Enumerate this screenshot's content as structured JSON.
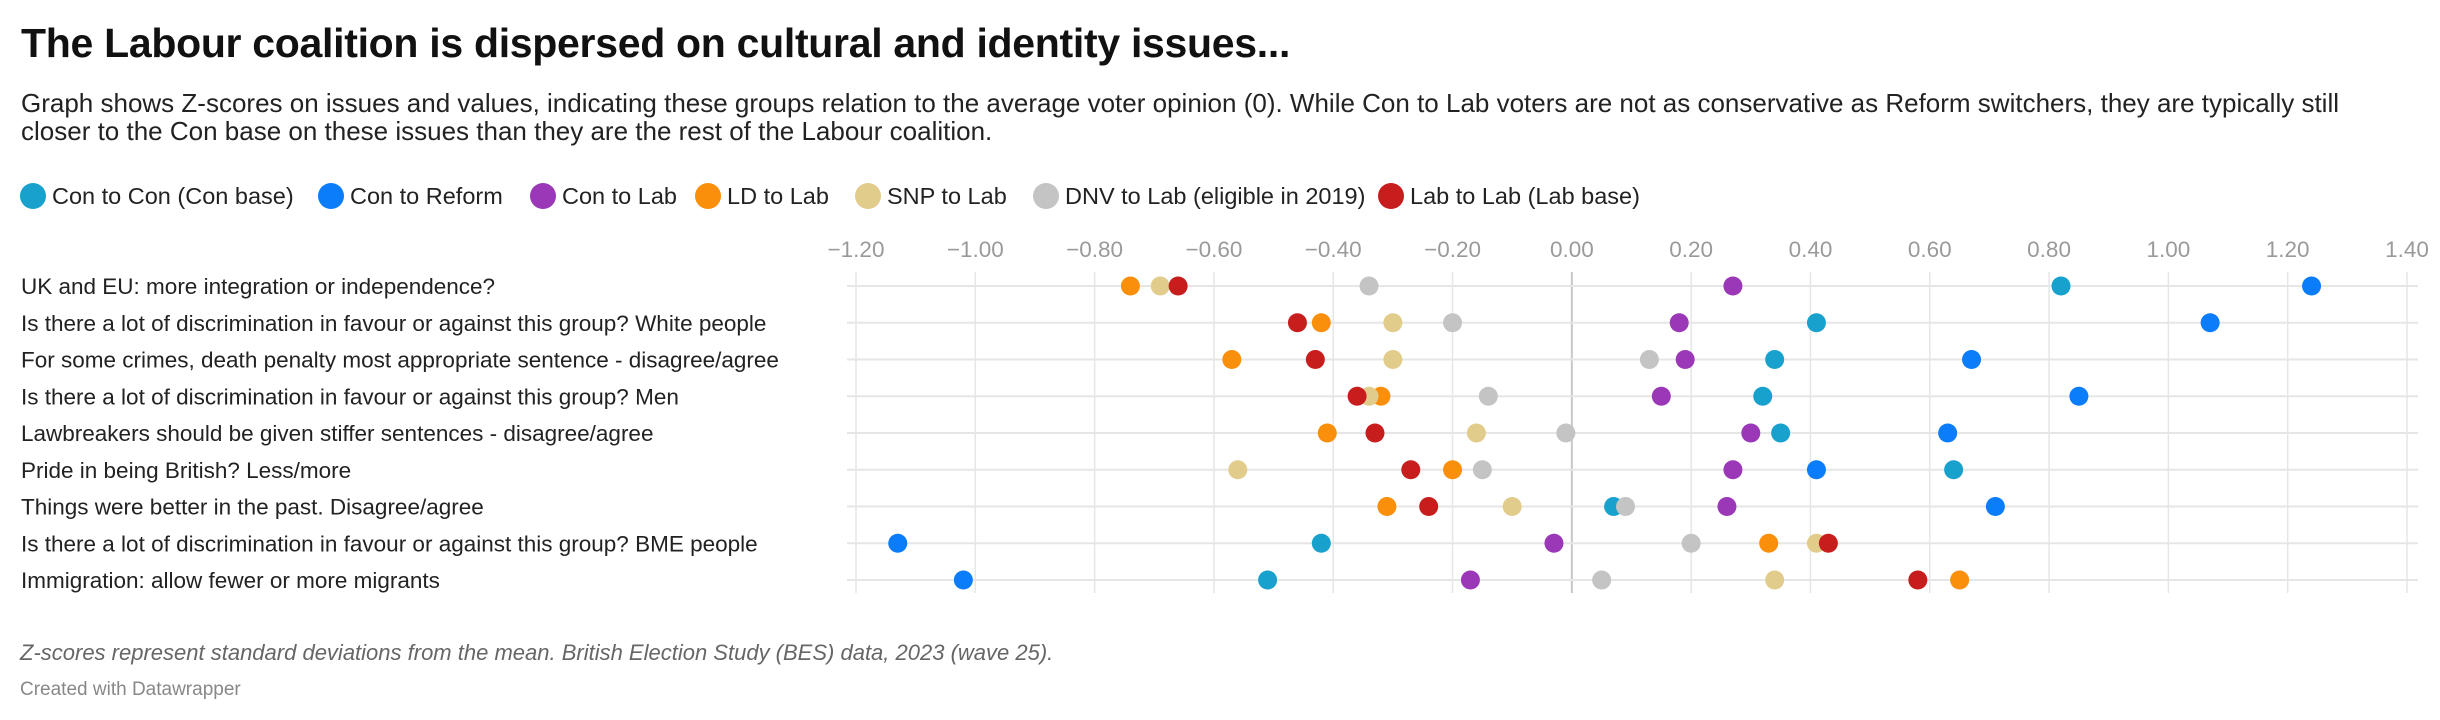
{
  "header": {
    "title": "The Labour coalition is dispersed on cultural and identity issues...",
    "subtitle": "Graph shows Z-scores on issues and values, indicating these groups relation to the average voter opinion (0). While Con to Lab voters are not as conservative as Reform switchers, they are typically still closer to the Con base on these issues than they are the rest of the Labour coalition."
  },
  "footer": {
    "note": "Z-scores represent standard deviations from the mean. British Election Study (BES) data, 2023 (wave 25).",
    "credit": "Created with Datawrapper"
  },
  "chart_data": {
    "type": "scatter",
    "subtype": "dot-plot",
    "title": "The Labour coalition is dispersed on cultural and identity issues...",
    "xlabel": "",
    "ylabel": "",
    "xlim": [
      -1.2,
      1.4
    ],
    "x_ticks": [
      -1.2,
      -1.0,
      -0.8,
      -0.6,
      -0.4,
      -0.2,
      0.0,
      0.2,
      0.4,
      0.6,
      0.8,
      1.0,
      1.2,
      1.4
    ],
    "x_tick_labels": [
      "−1.20",
      "−1.00",
      "−0.80",
      "−0.60",
      "−0.40",
      "−0.20",
      "0.00",
      "0.20",
      "0.40",
      "0.60",
      "0.80",
      "1.00",
      "1.20",
      "1.40"
    ],
    "grid": true,
    "legend_position": "top-left",
    "categories": [
      "UK and EU: more integration or independence?",
      "Is there a lot of discrimination in favour or against this group? White people",
      "For some crimes, death penalty most appropriate sentence - disagree/agree",
      "Is there a lot of discrimination in favour or against this group? Men",
      "Lawbreakers should be given stiffer sentences - disagree/agree",
      "Pride in being British? Less/more",
      "Things were better in the past. Disagree/agree",
      "Is there a lot of discrimination in favour or against this group? BME people",
      "Immigration: allow fewer or more migrants"
    ],
    "series": [
      {
        "name": "Con to Con (Con base)",
        "color": "#18a1cd",
        "values": [
          0.82,
          0.41,
          0.34,
          0.32,
          0.35,
          0.64,
          0.07,
          -0.42,
          -0.51
        ]
      },
      {
        "name": "Con to Reform",
        "color": "#0b7cfa",
        "values": [
          1.24,
          1.07,
          0.67,
          0.85,
          0.63,
          0.41,
          0.71,
          -1.13,
          -1.02
        ]
      },
      {
        "name": "Con to Lab",
        "color": "#9a38b7",
        "values": [
          0.27,
          0.18,
          0.19,
          0.15,
          0.3,
          0.27,
          0.26,
          -0.03,
          -0.17
        ]
      },
      {
        "name": "LD to Lab",
        "color": "#f98f0b",
        "values": [
          -0.74,
          -0.42,
          -0.57,
          -0.32,
          -0.41,
          -0.2,
          -0.31,
          0.33,
          0.65
        ]
      },
      {
        "name": "SNP to Lab",
        "color": "#e2cc8b",
        "values": [
          -0.69,
          -0.3,
          -0.3,
          -0.34,
          -0.16,
          -0.56,
          -0.1,
          0.41,
          0.34
        ]
      },
      {
        "name": "DNV to Lab (eligible in 2019)",
        "color": "#c4c4c4",
        "values": [
          -0.34,
          -0.2,
          0.13,
          -0.14,
          -0.01,
          -0.15,
          0.09,
          0.2,
          0.05
        ]
      },
      {
        "name": "Lab to Lab (Lab base)",
        "color": "#c71e1d",
        "values": [
          -0.66,
          -0.46,
          -0.43,
          -0.36,
          -0.33,
          -0.27,
          -0.24,
          0.43,
          0.58
        ]
      }
    ]
  }
}
